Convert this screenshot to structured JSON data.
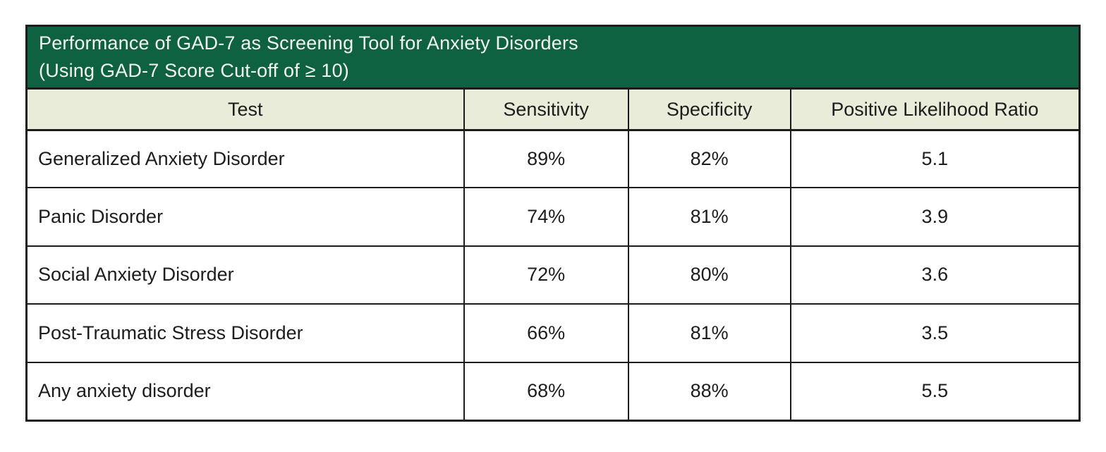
{
  "table": {
    "title_line1": "Performance of GAD-7 as Screening Tool for Anxiety Disorders",
    "title_line2": "(Using GAD-7 Score Cut-off of ≥ 10)",
    "headers": {
      "test": "Test",
      "sensitivity": "Sensitivity",
      "specificity": "Specificity",
      "plr": "Positive Likelihood Ratio"
    },
    "rows": [
      {
        "test": "Generalized Anxiety Disorder",
        "sensitivity": "89%",
        "specificity": "82%",
        "plr": "5.1"
      },
      {
        "test": "Panic Disorder",
        "sensitivity": "74%",
        "specificity": "81%",
        "plr": "3.9"
      },
      {
        "test": "Social Anxiety Disorder",
        "sensitivity": "72%",
        "specificity": "80%",
        "plr": "3.6"
      },
      {
        "test": "Post-Traumatic Stress Disorder",
        "sensitivity": "66%",
        "specificity": "81%",
        "plr": "3.5"
      },
      {
        "test": "Any anxiety disorder",
        "sensitivity": "68%",
        "specificity": "88%",
        "plr": "5.5"
      }
    ],
    "colors": {
      "title_background": "#0f6241",
      "title_text": "#f3f6ec",
      "header_background": "#e8ecd9",
      "border": "#1c1c1c",
      "cell_text": "#1d1d1d",
      "page_background": "#ffffff"
    }
  },
  "chart_data": {
    "type": "table",
    "title": "Performance of GAD-7 as Screening Tool for Anxiety Disorders (Using GAD-7 Score Cut-off of ≥ 10)",
    "columns": [
      "Test",
      "Sensitivity",
      "Specificity",
      "Positive Likelihood Ratio"
    ],
    "rows": [
      [
        "Generalized Anxiety Disorder",
        "89%",
        "82%",
        5.1
      ],
      [
        "Panic Disorder",
        "74%",
        "81%",
        3.9
      ],
      [
        "Social Anxiety Disorder",
        "72%",
        "80%",
        3.6
      ],
      [
        "Post-Traumatic Stress Disorder",
        "66%",
        "81%",
        3.5
      ],
      [
        "Any anxiety disorder",
        "68%",
        "88%",
        5.5
      ]
    ]
  }
}
